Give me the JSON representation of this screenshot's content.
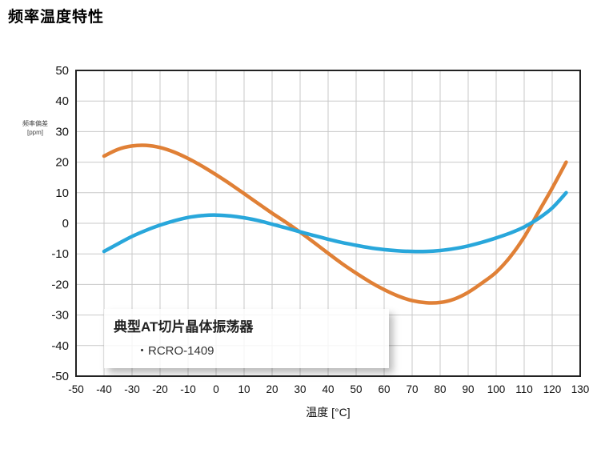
{
  "page": {
    "title": "频率温度特性"
  },
  "legend": {
    "title": "典型AT切片晶体振荡器",
    "item": "・RCRO-1409"
  },
  "chart_data": {
    "type": "line",
    "title": "频率温度特性",
    "xlabel": "温度 [°C]",
    "ylabel": "频率偏差 [ppm]",
    "ylabel_lines": [
      "频率偏差",
      "[ppm]"
    ],
    "xlim": [
      -50,
      130
    ],
    "ylim": [
      -50,
      50
    ],
    "x_ticks": [
      -50,
      -40,
      -30,
      -20,
      -10,
      0,
      10,
      20,
      30,
      40,
      50,
      60,
      70,
      80,
      90,
      100,
      110,
      120,
      130
    ],
    "y_ticks": [
      -50,
      -40,
      -30,
      -20,
      -10,
      0,
      10,
      20,
      30,
      40,
      50
    ],
    "grid": true,
    "grid_color": "#c9c9c9",
    "axis_color": "#222222",
    "legend_position": "bottom-left overlay",
    "series": [
      {
        "name": "series-orange",
        "color": "#e08036",
        "x": [
          -40,
          -35,
          -30,
          -25,
          -20,
          -15,
          -10,
          -5,
          0,
          5,
          10,
          15,
          20,
          25,
          30,
          35,
          40,
          45,
          50,
          55,
          60,
          65,
          70,
          75,
          80,
          85,
          90,
          95,
          100,
          105,
          110,
          115,
          120,
          125
        ],
        "y": [
          22,
          24.2,
          25.3,
          25.5,
          24.8,
          23.3,
          21.2,
          18.7,
          15.9,
          12.9,
          9.7,
          6.5,
          3.3,
          0.3,
          -2.9,
          -6.3,
          -9.8,
          -13.2,
          -16.3,
          -19.2,
          -21.7,
          -23.8,
          -25.3,
          -26,
          -25.9,
          -24.8,
          -22.6,
          -19.5,
          -16,
          -11,
          -4.5,
          3.5,
          11.5,
          20
        ]
      },
      {
        "name": "series-blue",
        "color": "#29a7db",
        "x": [
          -40,
          -35,
          -30,
          -25,
          -20,
          -15,
          -10,
          -5,
          0,
          5,
          10,
          15,
          20,
          25,
          30,
          35,
          40,
          45,
          50,
          55,
          60,
          65,
          70,
          75,
          80,
          85,
          90,
          95,
          100,
          105,
          110,
          115,
          120,
          125
        ],
        "y": [
          -9.2,
          -6.7,
          -4.3,
          -2.3,
          -0.6,
          0.8,
          1.9,
          2.5,
          2.7,
          2.4,
          1.8,
          0.9,
          -0.3,
          -1.5,
          -2.8,
          -4,
          -5.2,
          -6.3,
          -7.2,
          -8,
          -8.6,
          -9,
          -9.2,
          -9.2,
          -8.9,
          -8.3,
          -7.4,
          -6.2,
          -4.8,
          -3.2,
          -1.2,
          1.5,
          5,
          10
        ]
      }
    ]
  }
}
